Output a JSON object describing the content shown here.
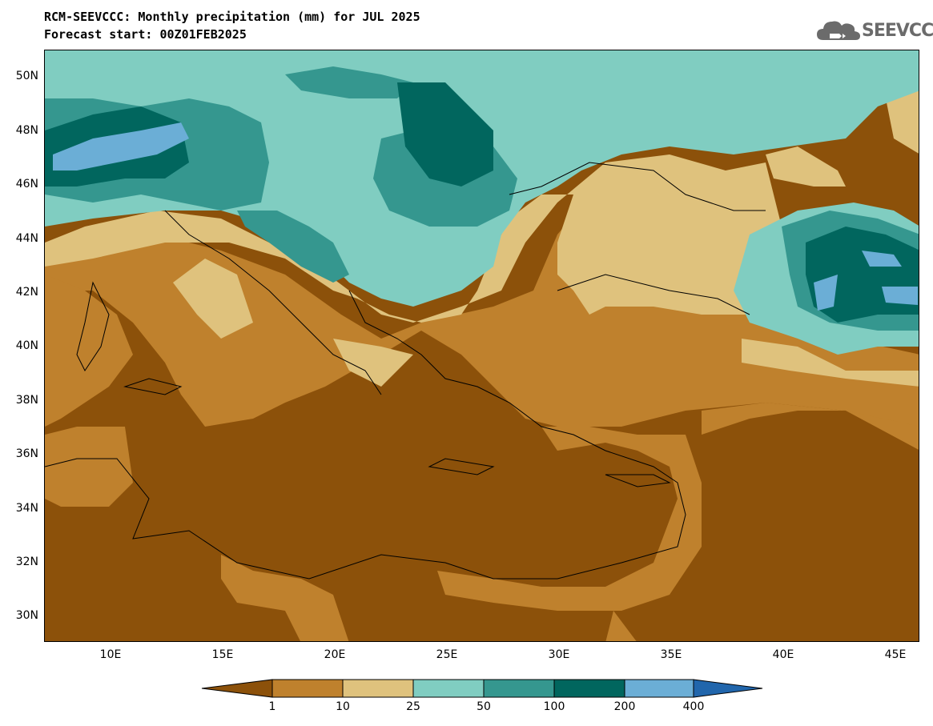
{
  "title_line1": "RCM-SEEVCCC: Monthly precipitation (mm) for JUL 2025",
  "title_line2": "Forecast start: 00Z01FEB2025",
  "logo_text": "SEEVCCC",
  "lat_labels": [
    "50N",
    "48N",
    "46N",
    "44N",
    "42N",
    "40N",
    "38N",
    "36N",
    "34N",
    "32N",
    "30N"
  ],
  "lon_labels": [
    "10E",
    "15E",
    "20E",
    "25E",
    "30E",
    "35E",
    "40E",
    "45E"
  ],
  "colorbar": {
    "levels": [
      "1",
      "10",
      "25",
      "50",
      "100",
      "200",
      "400"
    ],
    "colors": [
      "#8c510a",
      "#bf812d",
      "#dfc27d",
      "#80cdc1",
      "#35978f",
      "#01665e",
      "#6baed6",
      "#2166ac"
    ]
  }
}
